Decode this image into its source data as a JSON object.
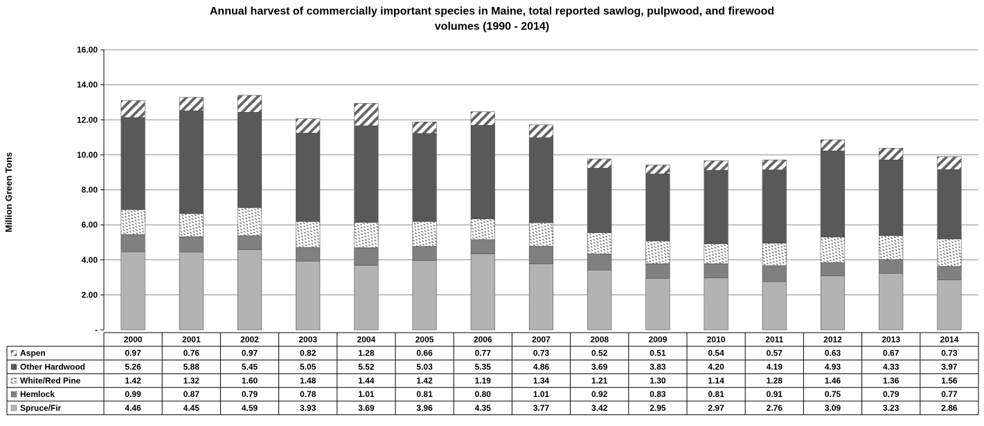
{
  "chart_data": {
    "type": "bar",
    "stacked": true,
    "title_line1": "Annual harvest of commercially important  species in Maine, total reported sawlog, pulpwood, and firewood",
    "title_line2": "volumes (1990 - 2014)",
    "ylabel": "Million Green Tons",
    "ylim": [
      0,
      16
    ],
    "y_ticks": [
      0,
      2,
      4,
      6,
      8,
      10,
      12,
      14,
      16
    ],
    "y_tick_labels": [
      "-",
      "2.00",
      "4.00",
      "6.00",
      "8.00",
      "10.00",
      "12.00",
      "14.00",
      "16.00"
    ],
    "grid": true,
    "legend_placement": "data-table-left",
    "categories": [
      "2000",
      "2001",
      "2002",
      "2003",
      "2004",
      "2005",
      "2006",
      "2007",
      "2008",
      "2009",
      "2010",
      "2011",
      "2012",
      "2013",
      "2014"
    ],
    "series": [
      {
        "name": "Spruce/Fir",
        "color": "#b3b3b3",
        "pattern": "solid",
        "values": [
          4.46,
          4.45,
          4.59,
          3.93,
          3.69,
          3.96,
          4.35,
          3.77,
          3.42,
          2.95,
          2.97,
          2.76,
          3.09,
          3.23,
          2.86
        ]
      },
      {
        "name": "Hemlock",
        "color": "#808080",
        "pattern": "solid",
        "values": [
          0.99,
          0.87,
          0.79,
          0.78,
          1.01,
          0.81,
          0.8,
          1.01,
          0.92,
          0.83,
          0.81,
          0.91,
          0.75,
          0.79,
          0.77
        ]
      },
      {
        "name": "White/Red Pine",
        "color": "#555555",
        "pattern": "dense-dashes",
        "values": [
          1.42,
          1.32,
          1.6,
          1.48,
          1.44,
          1.42,
          1.19,
          1.34,
          1.21,
          1.3,
          1.14,
          1.28,
          1.46,
          1.36,
          1.56
        ]
      },
      {
        "name": "Other Hardwood",
        "color": "#595959",
        "pattern": "solid",
        "values": [
          5.26,
          5.88,
          5.45,
          5.05,
          5.52,
          5.03,
          5.35,
          4.86,
          3.69,
          3.83,
          4.2,
          4.19,
          4.93,
          4.33,
          3.97
        ]
      },
      {
        "name": "Aspen",
        "color": "#666666",
        "pattern": "wide-hatch",
        "values": [
          0.97,
          0.76,
          0.97,
          0.82,
          1.28,
          0.66,
          0.77,
          0.73,
          0.52,
          0.51,
          0.54,
          0.57,
          0.63,
          0.67,
          0.73
        ]
      }
    ],
    "table_row_order": [
      "Aspen",
      "Other Hardwood",
      "White/Red Pine",
      "Hemlock",
      "Spruce/Fir"
    ]
  }
}
